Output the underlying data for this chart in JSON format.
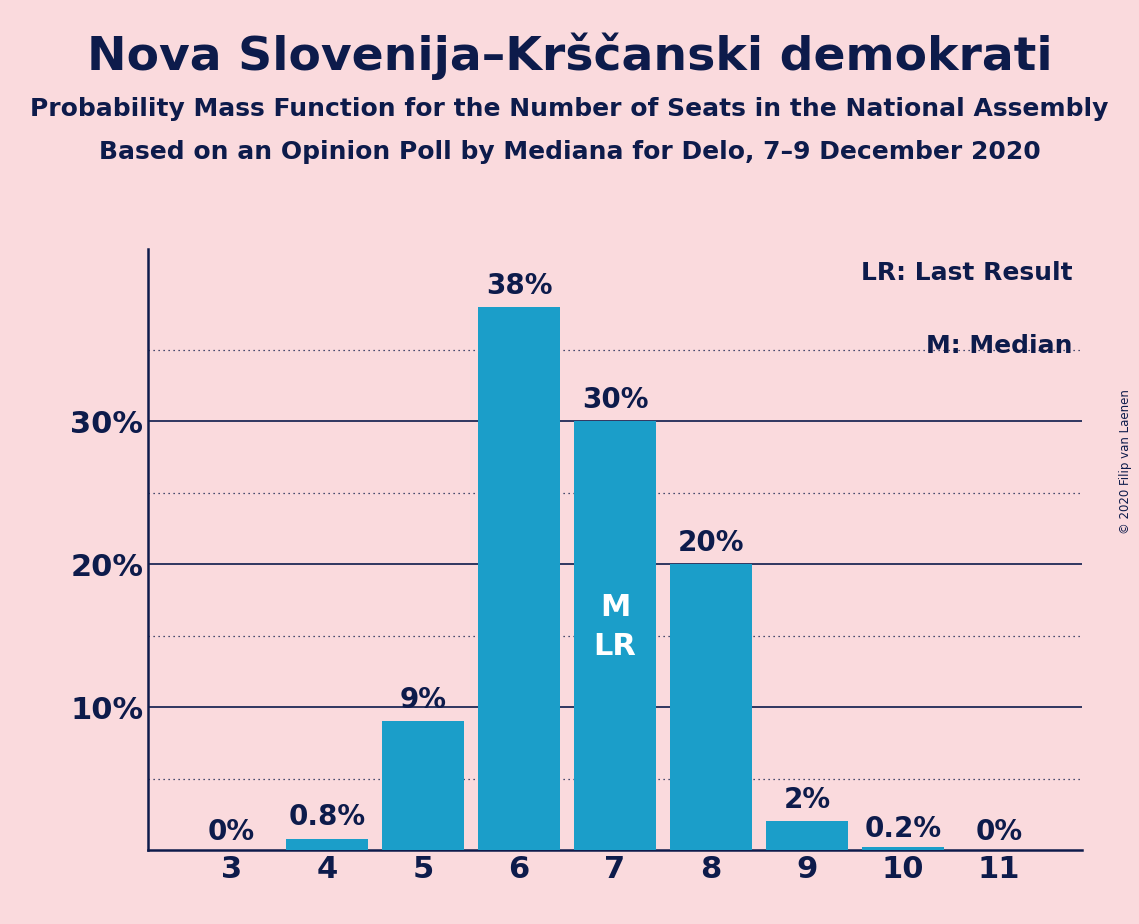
{
  "title": "Nova Slovenija–Krščanski demokrati",
  "subtitle1": "Probability Mass Function for the Number of Seats in the National Assembly",
  "subtitle2": "Based on an Opinion Poll by Mediana for Delo, 7–9 December 2020",
  "copyright": "© 2020 Filip van Laenen",
  "categories": [
    3,
    4,
    5,
    6,
    7,
    8,
    9,
    10,
    11
  ],
  "values": [
    0.0,
    0.8,
    9.0,
    38.0,
    30.0,
    20.0,
    2.0,
    0.2,
    0.0
  ],
  "bar_labels": [
    "0%",
    "0.8%",
    "9%",
    "38%",
    "30%",
    "20%",
    "2%",
    "0.2%",
    "0%"
  ],
  "bar_color": "#1B9EC9",
  "background_color": "#FADADD",
  "text_color": "#0D1B4B",
  "bar_text_color_outside": "#0D1B4B",
  "bar_text_color_inside": "#FFFFFF",
  "median_seat": 7,
  "last_result_seat": 7,
  "legend_lr": "LR: Last Result",
  "legend_m": "M: Median",
  "ylim": [
    0,
    42
  ],
  "solid_yticks": [
    10,
    20,
    30
  ],
  "dotted_yticks": [
    5,
    15,
    25,
    35
  ],
  "title_fontsize": 34,
  "subtitle_fontsize": 18,
  "axis_tick_fontsize": 22,
  "bar_label_fontsize": 20,
  "legend_fontsize": 18,
  "inside_label_fontsize": 22
}
